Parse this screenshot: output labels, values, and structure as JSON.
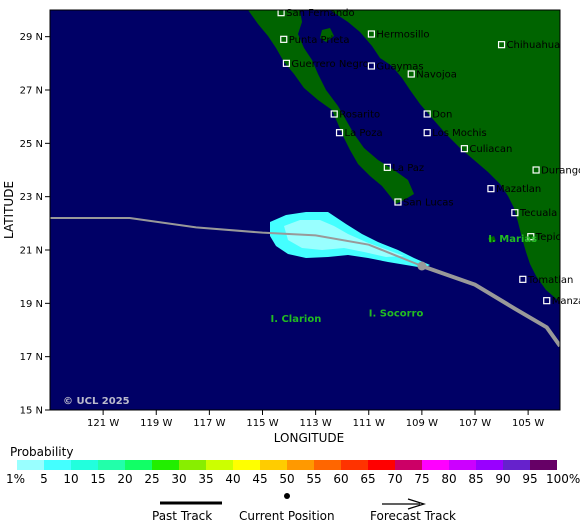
{
  "map": {
    "xlabel": "LONGITUDE",
    "ylabel": "LATITUDE",
    "lon_range": [
      -123,
      -103.8
    ],
    "lat_range": [
      15,
      30
    ],
    "x_ticks": [
      {
        "lon": -121,
        "label": "121 W"
      },
      {
        "lon": -119,
        "label": "119 W"
      },
      {
        "lon": -117,
        "label": "117 W"
      },
      {
        "lon": -115,
        "label": "115 W"
      },
      {
        "lon": -113,
        "label": "113 W"
      },
      {
        "lon": -111,
        "label": "111 W"
      },
      {
        "lon": -109,
        "label": "109 W"
      },
      {
        "lon": -107,
        "label": "107 W"
      },
      {
        "lon": -105,
        "label": "105 W"
      }
    ],
    "y_ticks": [
      {
        "lat": 29,
        "label": "29 N"
      },
      {
        "lat": 27,
        "label": "27 N"
      },
      {
        "lat": 25,
        "label": "25 N"
      },
      {
        "lat": 23,
        "label": "23 N"
      },
      {
        "lat": 21,
        "label": "21 N"
      },
      {
        "lat": 19,
        "label": "19 N"
      },
      {
        "lat": 17,
        "label": "17 N"
      },
      {
        "lat": 15,
        "label": "15 N"
      }
    ],
    "colors": {
      "ocean": "#000066",
      "land": "#006400",
      "track": "#999999"
    },
    "copyright": "© UCL 2025"
  },
  "cities": [
    {
      "name": "San Fernando",
      "lon": -114.3,
      "lat": 29.9
    },
    {
      "name": "Punta Prieta",
      "lon": -114.2,
      "lat": 28.9
    },
    {
      "name": "Hermosillo",
      "lon": -110.9,
      "lat": 29.1
    },
    {
      "name": "Chihuahua",
      "lon": -106.0,
      "lat": 28.7
    },
    {
      "name": "Guerrero Negro",
      "lon": -114.1,
      "lat": 28.0
    },
    {
      "name": "Guaymas",
      "lon": -110.9,
      "lat": 27.9
    },
    {
      "name": "Navojoa",
      "lon": -109.4,
      "lat": 27.6
    },
    {
      "name": "Rosarito",
      "lon": -112.3,
      "lat": 26.1
    },
    {
      "name": "Don",
      "lon": -108.8,
      "lat": 26.1
    },
    {
      "name": "La Poza",
      "lon": -112.1,
      "lat": 25.4
    },
    {
      "name": "Los Mochis",
      "lon": -108.8,
      "lat": 25.4
    },
    {
      "name": "Culiacan",
      "lon": -107.4,
      "lat": 24.8
    },
    {
      "name": "La Paz",
      "lon": -110.3,
      "lat": 24.1
    },
    {
      "name": "Durango",
      "lon": -104.7,
      "lat": 24.0
    },
    {
      "name": "Mazatlan",
      "lon": -106.4,
      "lat": 23.3
    },
    {
      "name": "San Lucas",
      "lon": -109.9,
      "lat": 22.8
    },
    {
      "name": "Tecuala",
      "lon": -105.5,
      "lat": 22.4
    },
    {
      "name": "Tepic",
      "lon": -104.9,
      "lat": 21.5
    },
    {
      "name": "Tomatlan",
      "lon": -105.2,
      "lat": 19.9
    },
    {
      "name": "Manzanillo",
      "lon": -104.3,
      "lat": 19.1
    }
  ],
  "islands": [
    {
      "name": "I. Clarion",
      "lon": -114.7,
      "lat": 18.3
    },
    {
      "name": "I. Socorro",
      "lon": -111.0,
      "lat": 18.5
    },
    {
      "name": "I. Marias",
      "lon": -106.5,
      "lat": 21.3
    }
  ],
  "track": {
    "past": [
      [
        -123.0,
        22.2
      ],
      [
        -120.0,
        22.2
      ],
      [
        -117.5,
        21.85
      ],
      [
        -115.0,
        21.65
      ],
      [
        -113.0,
        21.55
      ],
      [
        -111.0,
        21.2
      ],
      [
        -109.0,
        20.4
      ]
    ],
    "current": [
      -109.0,
      20.4
    ],
    "forecast": [
      [
        -109.0,
        20.4
      ],
      [
        -107.0,
        19.7
      ],
      [
        -105.5,
        18.8
      ],
      [
        -104.3,
        18.1
      ],
      [
        -103.8,
        17.4
      ]
    ]
  },
  "probability": {
    "title": "Probability",
    "labels": [
      "1%",
      "5",
      "10",
      "15",
      "20",
      "25",
      "30",
      "35",
      "40",
      "45",
      "50",
      "55",
      "60",
      "65",
      "70",
      "75",
      "80",
      "85",
      "90",
      "95",
      "100%"
    ],
    "colors": [
      "#99ffff",
      "#44ffff",
      "#22ffdd",
      "#22ffaa",
      "#11ff66",
      "#22ee00",
      "#88ee00",
      "#ccff00",
      "#ffff00",
      "#ffcc00",
      "#ff9900",
      "#ff6600",
      "#ff3300",
      "#ff0000",
      "#cc0066",
      "#ff00ff",
      "#cc00ff",
      "#9900ff",
      "#6622cc",
      "#660066"
    ]
  },
  "key": {
    "past": "Past Track",
    "current": "Current Position",
    "forecast": "Forecast Track"
  }
}
